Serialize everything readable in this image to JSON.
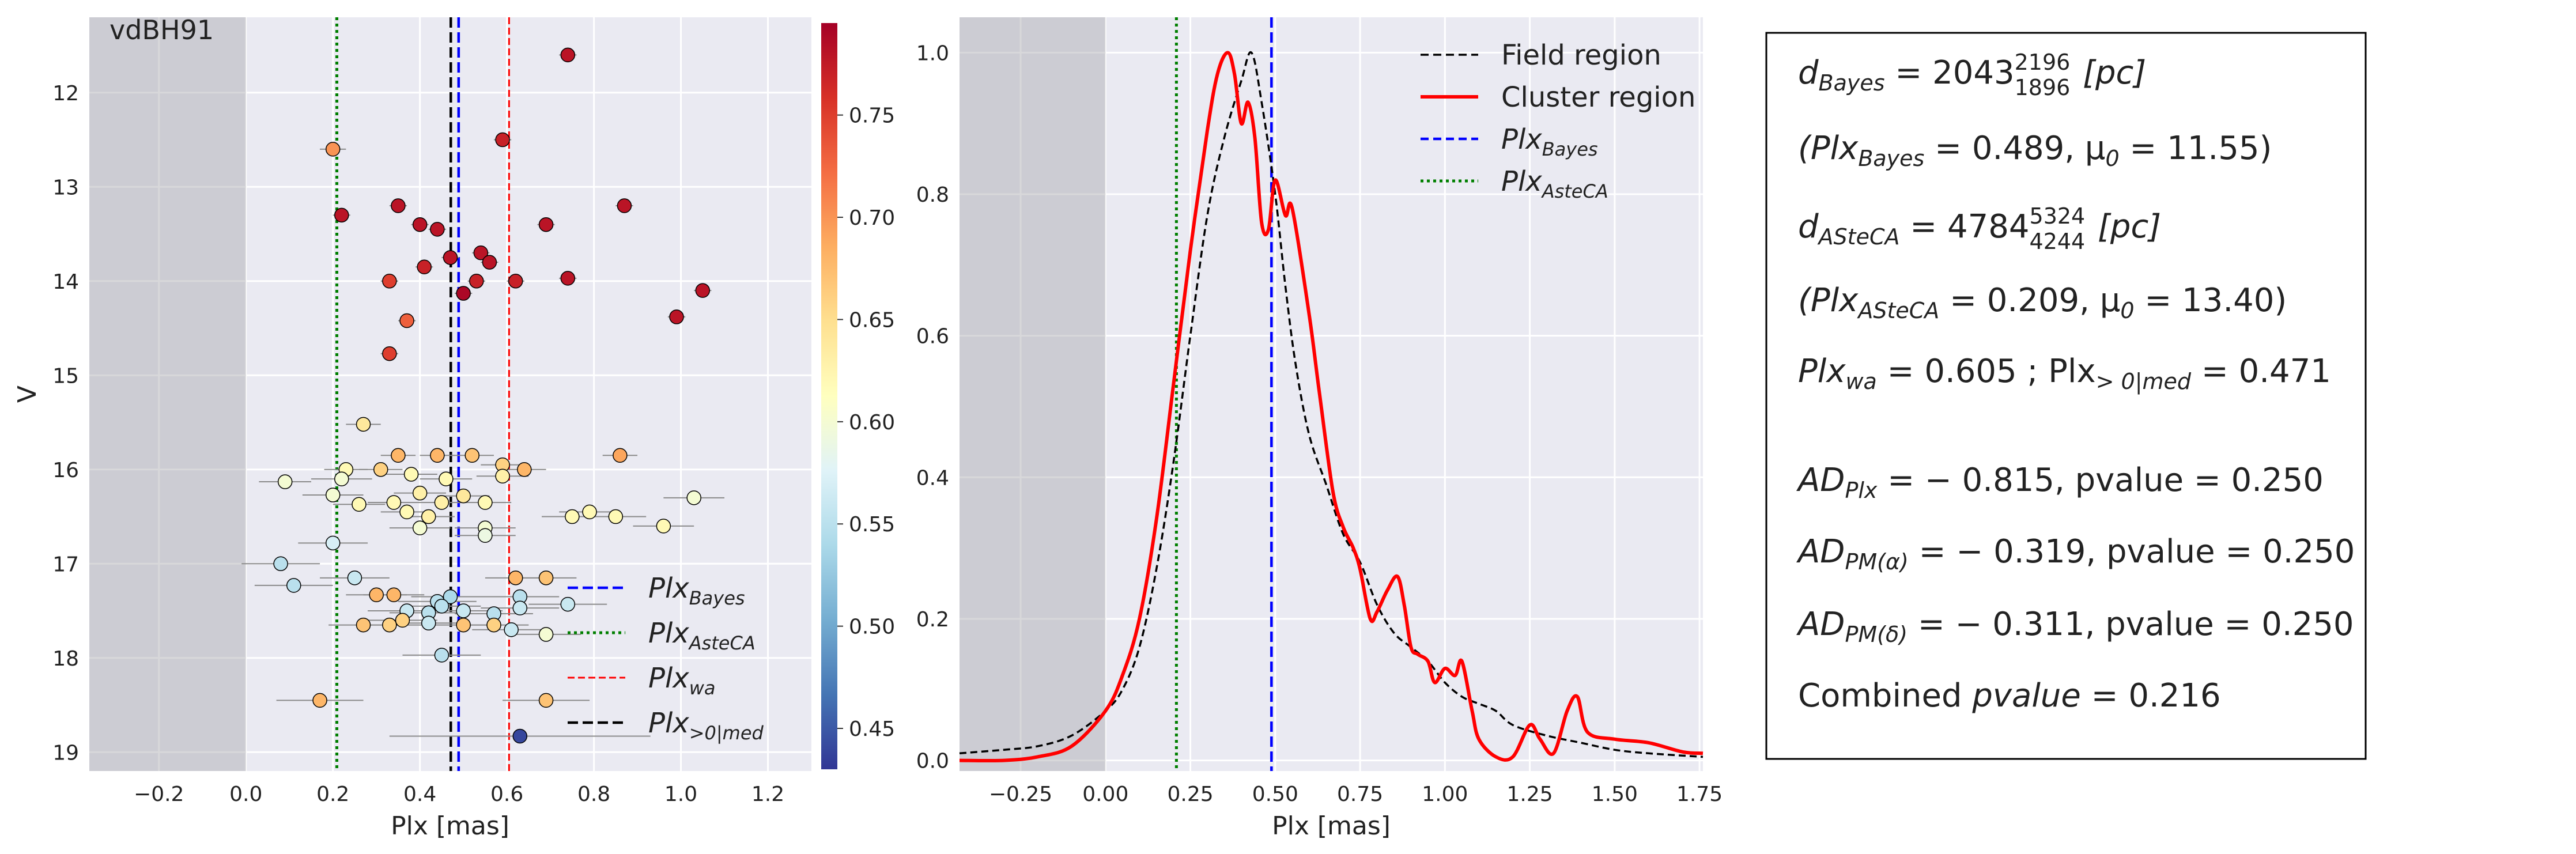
{
  "chart_data": [
    {
      "type": "scatter",
      "title": "vdBH91",
      "xlabel": "Plx [mas]",
      "ylabel": "V",
      "xlim": [
        -0.36,
        1.3
      ],
      "ylim": [
        19.2,
        11.2
      ],
      "y_inverted": true,
      "grid": true,
      "xticks": [
        -0.2,
        0.0,
        0.2,
        0.4,
        0.6,
        0.8,
        1.0,
        1.2
      ],
      "xtick_labels": [
        "−0.2",
        "0.0",
        "0.2",
        "0.4",
        "0.6",
        "0.8",
        "1.0",
        "1.2"
      ],
      "yticks": [
        12,
        13,
        14,
        15,
        16,
        17,
        18,
        19
      ],
      "shaded_region": [
        -0.36,
        0.0
      ],
      "colorbar": {
        "range": [
          0.43,
          0.795
        ],
        "ticks": [
          0.45,
          0.5,
          0.55,
          0.6,
          0.65,
          0.7,
          0.75
        ],
        "tick_labels": [
          "0.45",
          "0.50",
          "0.55",
          "0.60",
          "0.65",
          "0.70",
          "0.75"
        ],
        "colormap": "RdYlBu_r"
      },
      "vlines": [
        {
          "x": 0.489,
          "color": "#0000ff",
          "style": "dashed",
          "legend": "Plx",
          "legend_sub": "Bayes"
        },
        {
          "x": 0.209,
          "color": "#007f00",
          "style": "dotted",
          "legend": "Plx",
          "legend_sub": "AsteCA"
        },
        {
          "x": 0.605,
          "color": "#ff0000",
          "style": "dashed-thin",
          "legend": "Plx",
          "legend_sub": "wa"
        },
        {
          "x": 0.471,
          "color": "#000000",
          "style": "dashed",
          "legend": "Plx",
          "legend_sub": ">0|med"
        }
      ],
      "legend_placement": "lower-right",
      "points": [
        {
          "x": 0.74,
          "y": 11.6,
          "c": 0.78,
          "err": 0.02
        },
        {
          "x": 0.59,
          "y": 12.5,
          "c": 0.77,
          "err": 0.02
        },
        {
          "x": 0.2,
          "y": 12.6,
          "c": 0.7,
          "err": 0.03
        },
        {
          "x": 0.22,
          "y": 13.3,
          "c": 0.78,
          "err": 0.02
        },
        {
          "x": 0.35,
          "y": 13.2,
          "c": 0.78,
          "err": 0.02
        },
        {
          "x": 0.4,
          "y": 13.4,
          "c": 0.78,
          "err": 0.02
        },
        {
          "x": 0.44,
          "y": 13.45,
          "c": 0.78,
          "err": 0.02
        },
        {
          "x": 0.69,
          "y": 13.4,
          "c": 0.78,
          "err": 0.02
        },
        {
          "x": 0.87,
          "y": 13.2,
          "c": 0.78,
          "err": 0.02
        },
        {
          "x": 0.47,
          "y": 13.75,
          "c": 0.78,
          "err": 0.02
        },
        {
          "x": 0.54,
          "y": 13.7,
          "c": 0.78,
          "err": 0.02
        },
        {
          "x": 0.56,
          "y": 13.8,
          "c": 0.78,
          "err": 0.02
        },
        {
          "x": 0.41,
          "y": 13.85,
          "c": 0.77,
          "err": 0.02
        },
        {
          "x": 0.33,
          "y": 14.0,
          "c": 0.75,
          "err": 0.02
        },
        {
          "x": 0.53,
          "y": 14.0,
          "c": 0.77,
          "err": 0.02
        },
        {
          "x": 0.62,
          "y": 14.0,
          "c": 0.77,
          "err": 0.02
        },
        {
          "x": 0.74,
          "y": 13.97,
          "c": 0.78,
          "err": 0.02
        },
        {
          "x": 0.5,
          "y": 14.13,
          "c": 0.79,
          "err": 0.02
        },
        {
          "x": 1.05,
          "y": 14.1,
          "c": 0.78,
          "err": 0.02
        },
        {
          "x": 0.99,
          "y": 14.38,
          "c": 0.78,
          "err": 0.02
        },
        {
          "x": 0.37,
          "y": 14.42,
          "c": 0.73,
          "err": 0.02
        },
        {
          "x": 0.33,
          "y": 14.77,
          "c": 0.75,
          "err": 0.02
        },
        {
          "x": 0.27,
          "y": 15.52,
          "c": 0.64,
          "err": 0.04
        },
        {
          "x": 0.35,
          "y": 15.85,
          "c": 0.68,
          "err": 0.04
        },
        {
          "x": 0.44,
          "y": 15.85,
          "c": 0.68,
          "err": 0.04
        },
        {
          "x": 0.52,
          "y": 15.85,
          "c": 0.67,
          "err": 0.05
        },
        {
          "x": 0.86,
          "y": 15.85,
          "c": 0.69,
          "err": 0.04
        },
        {
          "x": 0.31,
          "y": 16.0,
          "c": 0.66,
          "err": 0.05
        },
        {
          "x": 0.23,
          "y": 16.0,
          "c": 0.62,
          "err": 0.05
        },
        {
          "x": 0.38,
          "y": 16.05,
          "c": 0.62,
          "err": 0.06
        },
        {
          "x": 0.59,
          "y": 15.95,
          "c": 0.66,
          "err": 0.05
        },
        {
          "x": 0.64,
          "y": 16.0,
          "c": 0.68,
          "err": 0.05
        },
        {
          "x": 0.09,
          "y": 16.13,
          "c": 0.6,
          "err": 0.06
        },
        {
          "x": 0.22,
          "y": 16.1,
          "c": 0.6,
          "err": 0.07
        },
        {
          "x": 0.46,
          "y": 16.1,
          "c": 0.62,
          "err": 0.06
        },
        {
          "x": 0.59,
          "y": 16.07,
          "c": 0.63,
          "err": 0.06
        },
        {
          "x": 0.2,
          "y": 16.27,
          "c": 0.6,
          "err": 0.07
        },
        {
          "x": 0.26,
          "y": 16.37,
          "c": 0.62,
          "err": 0.06
        },
        {
          "x": 0.34,
          "y": 16.35,
          "c": 0.62,
          "err": 0.06
        },
        {
          "x": 0.4,
          "y": 16.25,
          "c": 0.63,
          "err": 0.06
        },
        {
          "x": 0.45,
          "y": 16.35,
          "c": 0.63,
          "err": 0.06
        },
        {
          "x": 0.5,
          "y": 16.28,
          "c": 0.64,
          "err": 0.06
        },
        {
          "x": 0.55,
          "y": 16.35,
          "c": 0.62,
          "err": 0.06
        },
        {
          "x": 0.37,
          "y": 16.45,
          "c": 0.62,
          "err": 0.06
        },
        {
          "x": 0.42,
          "y": 16.5,
          "c": 0.63,
          "err": 0.06
        },
        {
          "x": 0.4,
          "y": 16.62,
          "c": 0.6,
          "err": 0.07
        },
        {
          "x": 0.55,
          "y": 16.62,
          "c": 0.6,
          "err": 0.07
        },
        {
          "x": 0.55,
          "y": 16.7,
          "c": 0.59,
          "err": 0.07
        },
        {
          "x": 0.75,
          "y": 16.5,
          "c": 0.62,
          "err": 0.07
        },
        {
          "x": 0.79,
          "y": 16.45,
          "c": 0.62,
          "err": 0.07
        },
        {
          "x": 0.85,
          "y": 16.5,
          "c": 0.62,
          "err": 0.07
        },
        {
          "x": 0.96,
          "y": 16.6,
          "c": 0.62,
          "err": 0.07
        },
        {
          "x": 1.03,
          "y": 16.3,
          "c": 0.6,
          "err": 0.07
        },
        {
          "x": 0.2,
          "y": 16.78,
          "c": 0.57,
          "err": 0.08
        },
        {
          "x": 0.08,
          "y": 17.0,
          "c": 0.55,
          "err": 0.09
        },
        {
          "x": 0.11,
          "y": 17.23,
          "c": 0.55,
          "err": 0.09
        },
        {
          "x": 0.25,
          "y": 17.15,
          "c": 0.56,
          "err": 0.08
        },
        {
          "x": 0.3,
          "y": 17.33,
          "c": 0.68,
          "err": 0.07
        },
        {
          "x": 0.34,
          "y": 17.33,
          "c": 0.68,
          "err": 0.07
        },
        {
          "x": 0.44,
          "y": 17.4,
          "c": 0.55,
          "err": 0.09
        },
        {
          "x": 0.47,
          "y": 17.35,
          "c": 0.54,
          "err": 0.09
        },
        {
          "x": 0.62,
          "y": 17.15,
          "c": 0.68,
          "err": 0.07
        },
        {
          "x": 0.69,
          "y": 17.15,
          "c": 0.67,
          "err": 0.07
        },
        {
          "x": 0.63,
          "y": 17.35,
          "c": 0.55,
          "err": 0.09
        },
        {
          "x": 0.37,
          "y": 17.5,
          "c": 0.56,
          "err": 0.09
        },
        {
          "x": 0.42,
          "y": 17.52,
          "c": 0.55,
          "err": 0.09
        },
        {
          "x": 0.45,
          "y": 17.45,
          "c": 0.55,
          "err": 0.09
        },
        {
          "x": 0.5,
          "y": 17.5,
          "c": 0.56,
          "err": 0.09
        },
        {
          "x": 0.57,
          "y": 17.53,
          "c": 0.55,
          "err": 0.09
        },
        {
          "x": 0.63,
          "y": 17.47,
          "c": 0.56,
          "err": 0.09
        },
        {
          "x": 0.74,
          "y": 17.43,
          "c": 0.56,
          "err": 0.09
        },
        {
          "x": 0.27,
          "y": 17.65,
          "c": 0.67,
          "err": 0.08
        },
        {
          "x": 0.33,
          "y": 17.65,
          "c": 0.66,
          "err": 0.08
        },
        {
          "x": 0.36,
          "y": 17.6,
          "c": 0.66,
          "err": 0.08
        },
        {
          "x": 0.42,
          "y": 17.63,
          "c": 0.56,
          "err": 0.09
        },
        {
          "x": 0.5,
          "y": 17.65,
          "c": 0.67,
          "err": 0.08
        },
        {
          "x": 0.57,
          "y": 17.65,
          "c": 0.66,
          "err": 0.08
        },
        {
          "x": 0.61,
          "y": 17.7,
          "c": 0.56,
          "err": 0.09
        },
        {
          "x": 0.45,
          "y": 17.97,
          "c": 0.55,
          "err": 0.09
        },
        {
          "x": 0.69,
          "y": 17.75,
          "c": 0.6,
          "err": 0.08
        },
        {
          "x": 0.17,
          "y": 18.45,
          "c": 0.68,
          "err": 0.1
        },
        {
          "x": 0.69,
          "y": 18.45,
          "c": 0.67,
          "err": 0.1
        },
        {
          "x": 0.63,
          "y": 18.83,
          "c": 0.44,
          "err": 0.3
        }
      ]
    },
    {
      "type": "line",
      "xlabel": "Plx [mas]",
      "xlim": [
        -0.43,
        1.76
      ],
      "ylim": [
        -0.015,
        1.05
      ],
      "grid": true,
      "xticks": [
        -0.25,
        0.0,
        0.25,
        0.5,
        0.75,
        1.0,
        1.25,
        1.5,
        1.75
      ],
      "xtick_labels": [
        "−0.25",
        "0.00",
        "0.25",
        "0.50",
        "0.75",
        "1.00",
        "1.25",
        "1.50",
        "1.75"
      ],
      "yticks": [
        0.0,
        0.2,
        0.4,
        0.6,
        0.8,
        1.0
      ],
      "ytick_labels": [
        "0.0",
        "0.2",
        "0.4",
        "0.6",
        "0.8",
        "1.0"
      ],
      "shaded_region": [
        -0.43,
        0.0
      ],
      "legend_placement": "top-right",
      "vlines": [
        {
          "x": 0.489,
          "color": "#0000ff",
          "style": "dashed",
          "legend": "Plx",
          "legend_sub": "Bayes"
        },
        {
          "x": 0.209,
          "color": "#007f00",
          "style": "dotted",
          "legend": "Plx",
          "legend_sub": "AsteCA"
        }
      ],
      "series": [
        {
          "name": "Field region",
          "color": "#000000",
          "style": "dashed",
          "x": [
            -0.43,
            -0.3,
            -0.2,
            -0.1,
            0.0,
            0.05,
            0.1,
            0.15,
            0.2,
            0.25,
            0.3,
            0.35,
            0.4,
            0.43,
            0.46,
            0.5,
            0.53,
            0.56,
            0.6,
            0.65,
            0.7,
            0.75,
            0.8,
            0.85,
            0.9,
            0.95,
            1.0,
            1.05,
            1.1,
            1.15,
            1.2,
            1.3,
            1.4,
            1.5,
            1.6,
            1.76
          ],
          "y": [
            0.01,
            0.015,
            0.02,
            0.035,
            0.07,
            0.1,
            0.16,
            0.27,
            0.42,
            0.6,
            0.77,
            0.88,
            0.96,
            1.0,
            0.93,
            0.8,
            0.67,
            0.56,
            0.46,
            0.39,
            0.32,
            0.28,
            0.22,
            0.18,
            0.16,
            0.14,
            0.11,
            0.09,
            0.08,
            0.07,
            0.05,
            0.035,
            0.025,
            0.015,
            0.01,
            0.005
          ]
        },
        {
          "name": "Cluster region",
          "color": "#ff0000",
          "style": "solid",
          "x": [
            -0.43,
            -0.3,
            -0.2,
            -0.1,
            0.0,
            0.05,
            0.1,
            0.15,
            0.2,
            0.25,
            0.3,
            0.33,
            0.36,
            0.38,
            0.4,
            0.42,
            0.44,
            0.46,
            0.48,
            0.5,
            0.53,
            0.55,
            0.6,
            0.63,
            0.67,
            0.7,
            0.73,
            0.75,
            0.78,
            0.8,
            0.83,
            0.86,
            0.88,
            0.9,
            0.92,
            0.95,
            0.97,
            1.0,
            1.03,
            1.05,
            1.08,
            1.1,
            1.15,
            1.2,
            1.25,
            1.28,
            1.32,
            1.36,
            1.39,
            1.42,
            1.5,
            1.6,
            1.7,
            1.76
          ],
          "y": [
            0.0,
            0.0,
            0.005,
            0.02,
            0.07,
            0.12,
            0.2,
            0.34,
            0.53,
            0.72,
            0.89,
            0.97,
            1.0,
            0.97,
            0.9,
            0.93,
            0.88,
            0.76,
            0.75,
            0.82,
            0.77,
            0.78,
            0.63,
            0.52,
            0.38,
            0.33,
            0.3,
            0.27,
            0.2,
            0.21,
            0.24,
            0.26,
            0.22,
            0.16,
            0.15,
            0.14,
            0.11,
            0.13,
            0.12,
            0.14,
            0.07,
            0.03,
            0.005,
            0.005,
            0.05,
            0.03,
            0.01,
            0.07,
            0.09,
            0.04,
            0.03,
            0.025,
            0.012,
            0.01
          ]
        }
      ]
    }
  ],
  "info_box": {
    "lines": [
      {
        "id": "dbayes",
        "lhs": "d",
        "lhs_sub": "Bayes",
        "rhs": " = 2043",
        "sup": "2196",
        "sub": "1896",
        "tail": " [pc]"
      },
      {
        "id": "plxbayes",
        "text": "(Plx",
        "sub": "Bayes",
        "rest": " = 0.489,  μ",
        "sub2": "0",
        "rest2": " = 11.55)"
      },
      {
        "id": "dasteca",
        "lhs": "d",
        "lhs_sub": "ASteCA",
        "rhs": " = 4784",
        "sup": "5324",
        "sub": "4244",
        "tail": " [pc]"
      },
      {
        "id": "plxasteca",
        "text": "(Plx",
        "sub": "ASteCA",
        "rest": " = 0.209,  μ",
        "sub2": "0",
        "rest2": " = 13.40)"
      },
      {
        "id": "plxwa",
        "text": "Plx",
        "sub": "wa",
        "rest": " = 0.605 ; Plx",
        "sub2": "> 0|med",
        "rest2": " = 0.471"
      },
      {
        "id": "adplx",
        "text": "AD",
        "sub": "Plx",
        "rest": " = − 0.815,  pvalue = 0.250"
      },
      {
        "id": "adpma",
        "text": "AD",
        "sub": "PM(α)",
        "rest": " = − 0.319,  pvalue = 0.250"
      },
      {
        "id": "adpmd",
        "text": "AD",
        "sub": "PM(δ)",
        "rest": " = − 0.311,  pvalue = 0.250"
      },
      {
        "id": "combined",
        "text": "Combined ",
        "ital": "pvalue",
        "rest": " = 0.216"
      }
    ]
  }
}
